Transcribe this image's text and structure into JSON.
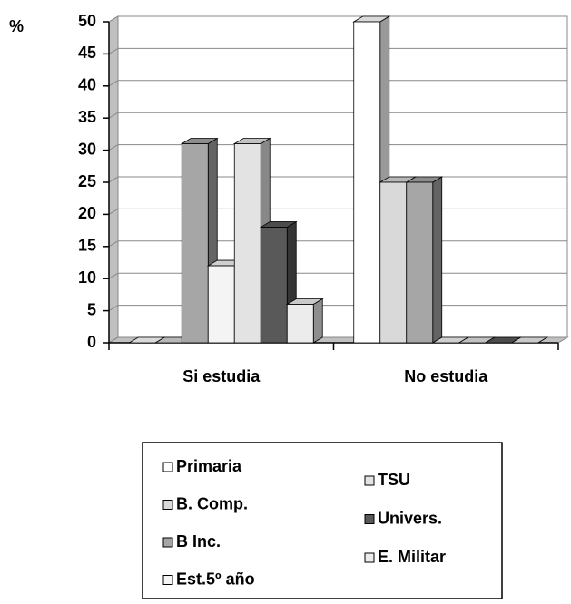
{
  "chart_data": {
    "type": "bar",
    "y_label": "%",
    "categories": [
      "Si estudia",
      "No estudia"
    ],
    "series": [
      {
        "name": "Primaria",
        "color": "#ffffff",
        "values": [
          0,
          50
        ]
      },
      {
        "name": "B. Comp.",
        "color": "#d9d9d9",
        "values": [
          0,
          25
        ]
      },
      {
        "name": "B Inc.",
        "color": "#a6a6a6",
        "values": [
          31,
          25
        ]
      },
      {
        "name": "Est.5º año",
        "color": "#f4f4f4",
        "values": [
          12,
          0
        ]
      },
      {
        "name": "TSU",
        "color": "#e3e3e3",
        "values": [
          31,
          0
        ]
      },
      {
        "name": "Univers.",
        "color": "#595959",
        "values": [
          18,
          0
        ]
      },
      {
        "name": "E. Militar",
        "color": "#ececec",
        "values": [
          6,
          0
        ]
      }
    ],
    "ylim": [
      0,
      50
    ],
    "yticks": [
      0,
      5,
      10,
      15,
      20,
      25,
      30,
      35,
      40,
      45,
      50
    ],
    "grid": true
  }
}
